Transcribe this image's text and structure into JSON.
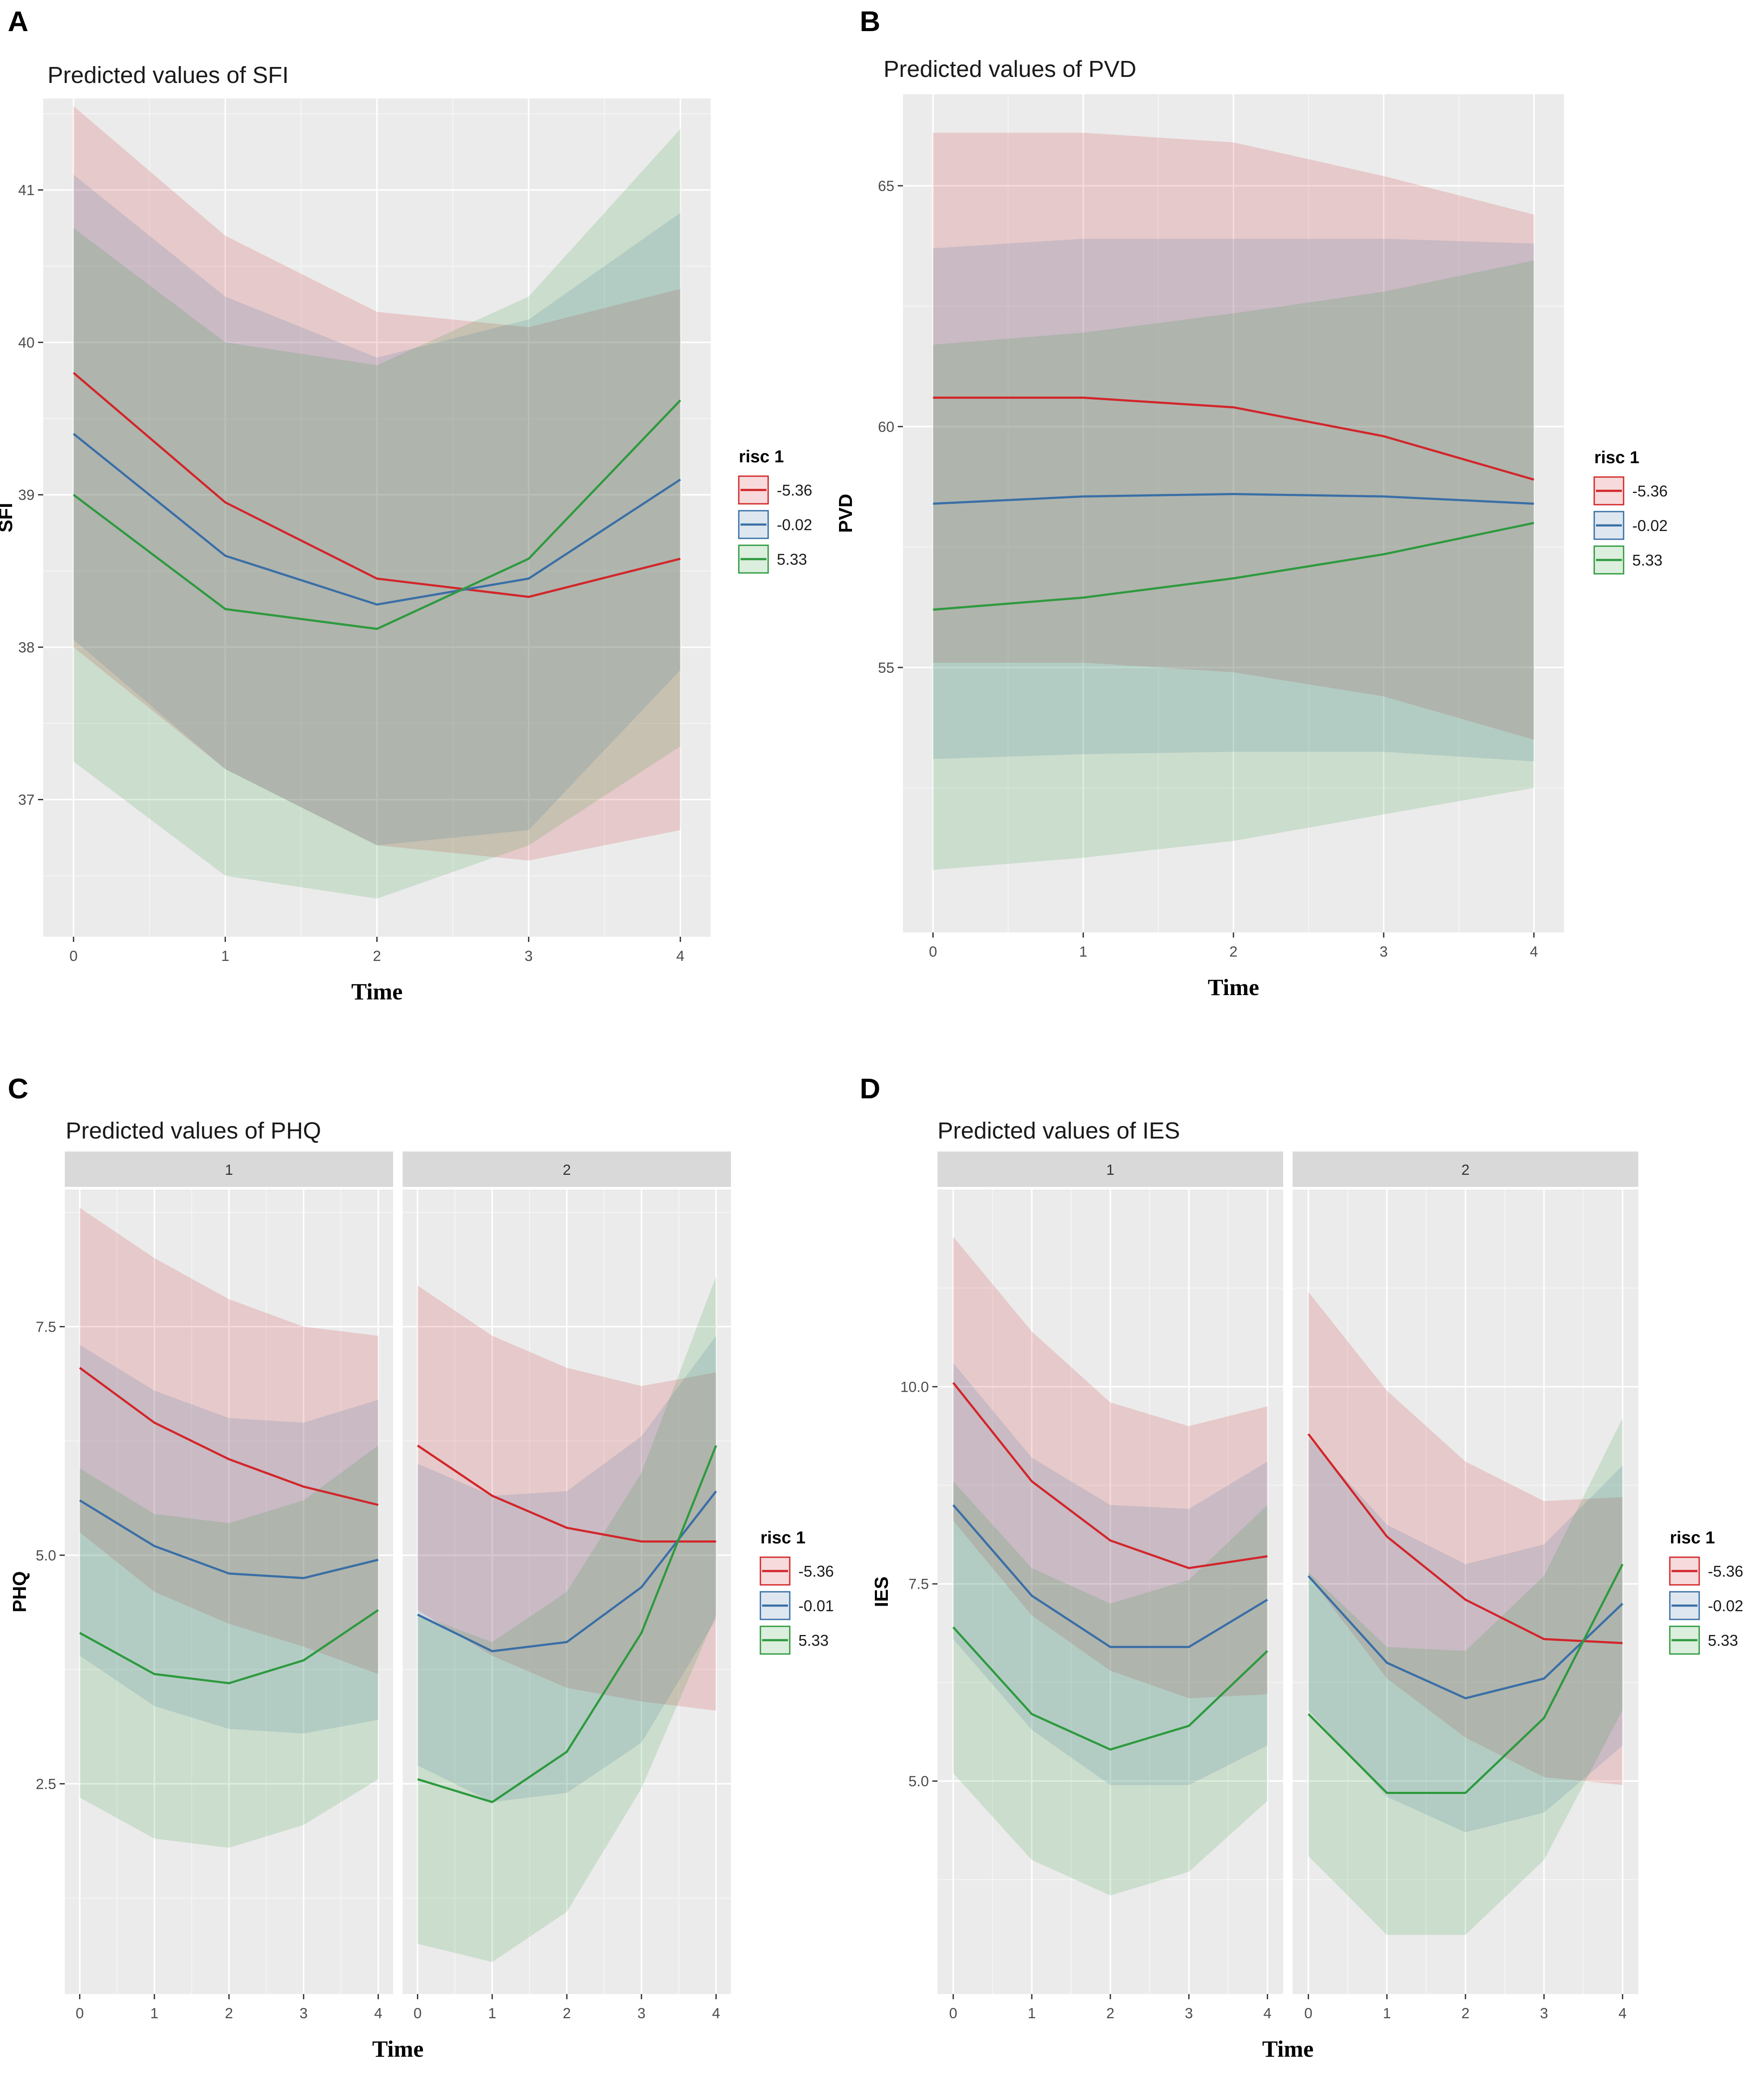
{
  "colors": {
    "red": "#d2262a",
    "blue": "#3a6fa6",
    "green": "#2e9a3e",
    "panel_bg": "#ebebeb",
    "strip_bg": "#d9d9d9"
  },
  "chart_data": [
    {
      "id": "A",
      "panel_letter": "A",
      "type": "line",
      "title": "Predicted values of SFI",
      "xlabel": "Time",
      "ylabel": "SFI",
      "x": [
        0,
        1,
        2,
        3,
        4
      ],
      "xlim": [
        -0.2,
        4.2
      ],
      "ylim": [
        36.1,
        41.6
      ],
      "yticks": [
        37,
        38,
        39,
        40,
        41
      ],
      "ytick_labels": [
        "37",
        "38",
        "39",
        "40",
        "41"
      ],
      "xtick_labels": [
        "0",
        "1",
        "2",
        "3",
        "4"
      ],
      "legend": {
        "title": "risc 1",
        "entries": [
          "-5.36",
          "-0.02",
          "5.33"
        ]
      },
      "facets": [
        {
          "strip": "",
          "series": [
            {
              "name": "-5.36",
              "color": "red",
              "values": [
                39.8,
                38.95,
                38.45,
                38.33,
                38.58
              ],
              "lower": [
                38.0,
                37.2,
                36.7,
                36.6,
                36.8
              ],
              "upper": [
                41.55,
                40.7,
                40.2,
                40.1,
                40.35
              ]
            },
            {
              "name": "-0.02",
              "color": "blue",
              "values": [
                39.4,
                38.6,
                38.28,
                38.45,
                39.1
              ],
              "lower": [
                38.05,
                37.2,
                36.7,
                36.8,
                37.85
              ],
              "upper": [
                41.1,
                40.3,
                39.9,
                40.15,
                40.85
              ]
            },
            {
              "name": "5.33",
              "color": "green",
              "values": [
                39.0,
                38.25,
                38.12,
                38.58,
                39.62
              ],
              "lower": [
                37.25,
                36.5,
                36.35,
                36.7,
                37.35
              ],
              "upper": [
                40.75,
                40.0,
                39.85,
                40.3,
                41.4
              ]
            }
          ]
        }
      ]
    },
    {
      "id": "B",
      "panel_letter": "B",
      "type": "line",
      "title": "Predicted values of PVD",
      "xlabel": "Time",
      "ylabel": "PVD",
      "x": [
        0,
        1,
        2,
        3,
        4
      ],
      "xlim": [
        -0.2,
        4.2
      ],
      "ylim": [
        49.5,
        66.9
      ],
      "yticks": [
        55,
        60,
        65
      ],
      "ytick_labels": [
        "55",
        "60",
        "65"
      ],
      "xtick_labels": [
        "0",
        "1",
        "2",
        "3",
        "4"
      ],
      "legend": {
        "title": "risc 1",
        "entries": [
          "-5.36",
          "-0.02",
          "5.33"
        ]
      },
      "facets": [
        {
          "strip": "",
          "series": [
            {
              "name": "-5.36",
              "color": "red",
              "values": [
                60.6,
                60.6,
                60.4,
                59.8,
                58.9
              ],
              "lower": [
                55.1,
                55.1,
                54.9,
                54.4,
                53.5
              ],
              "upper": [
                66.1,
                66.1,
                65.9,
                65.2,
                64.4
              ]
            },
            {
              "name": "-0.02",
              "color": "blue",
              "values": [
                58.4,
                58.55,
                58.6,
                58.55,
                58.4
              ],
              "lower": [
                53.1,
                53.2,
                53.25,
                53.25,
                53.05
              ],
              "upper": [
                63.7,
                63.9,
                63.9,
                63.9,
                63.8
              ]
            },
            {
              "name": "5.33",
              "color": "green",
              "values": [
                56.2,
                56.45,
                56.85,
                57.35,
                58.0
              ],
              "lower": [
                50.8,
                51.05,
                51.4,
                51.95,
                52.5
              ],
              "upper": [
                61.7,
                61.95,
                62.35,
                62.8,
                63.45
              ]
            }
          ]
        }
      ]
    },
    {
      "id": "C",
      "panel_letter": "C",
      "type": "line",
      "title": "Predicted values of PHQ",
      "xlabel": "Time",
      "ylabel": "PHQ",
      "x": [
        0,
        1,
        2,
        3,
        4
      ],
      "xlim": [
        -0.2,
        4.2
      ],
      "ylim": [
        0.2,
        9.0
      ],
      "yticks": [
        2.5,
        5.0,
        7.5
      ],
      "ytick_labels": [
        "2.5",
        "5.0",
        "7.5"
      ],
      "xtick_labels": [
        "0",
        "1",
        "2",
        "3",
        "4"
      ],
      "legend": {
        "title": "risc 1",
        "entries": [
          "-5.36",
          "-0.01",
          "5.33"
        ]
      },
      "facets": [
        {
          "strip": "1",
          "series": [
            {
              "name": "-5.36",
              "color": "red",
              "values": [
                7.05,
                6.45,
                6.05,
                5.75,
                5.55
              ],
              "lower": [
                5.25,
                4.6,
                4.25,
                4.0,
                3.7
              ],
              "upper": [
                8.8,
                8.25,
                7.8,
                7.5,
                7.4
              ]
            },
            {
              "name": "-0.01",
              "color": "blue",
              "values": [
                5.6,
                5.1,
                4.8,
                4.75,
                4.95
              ],
              "lower": [
                3.9,
                3.35,
                3.1,
                3.05,
                3.2
              ],
              "upper": [
                7.3,
                6.8,
                6.5,
                6.45,
                6.7
              ]
            },
            {
              "name": "5.33",
              "color": "green",
              "values": [
                4.15,
                3.7,
                3.6,
                3.85,
                4.4
              ],
              "lower": [
                2.35,
                1.9,
                1.8,
                2.05,
                2.55
              ],
              "upper": [
                5.95,
                5.45,
                5.35,
                5.6,
                6.2
              ]
            }
          ]
        },
        {
          "strip": "2",
          "series": [
            {
              "name": "-5.36",
              "color": "red",
              "values": [
                6.2,
                5.65,
                5.3,
                5.15,
                5.15
              ],
              "lower": [
                4.4,
                3.9,
                3.55,
                3.4,
                3.3
              ],
              "upper": [
                7.95,
                7.4,
                7.05,
                6.85,
                7.0
              ]
            },
            {
              "name": "-0.01",
              "color": "blue",
              "values": [
                4.35,
                3.95,
                4.05,
                4.65,
                5.7
              ],
              "lower": [
                2.7,
                2.3,
                2.4,
                2.95,
                4.3
              ],
              "upper": [
                6.0,
                5.65,
                5.7,
                6.3,
                7.4
              ]
            },
            {
              "name": "5.33",
              "color": "green",
              "values": [
                2.55,
                2.3,
                2.85,
                4.15,
                6.2
              ],
              "lower": [
                0.75,
                0.55,
                1.1,
                2.45,
                4.35
              ],
              "upper": [
                4.35,
                4.05,
                4.6,
                5.9,
                8.05
              ]
            }
          ]
        }
      ]
    },
    {
      "id": "D",
      "panel_letter": "D",
      "type": "line",
      "title": "Predicted values of IES",
      "xlabel": "Time",
      "ylabel": "IES",
      "x": [
        0,
        1,
        2,
        3,
        4
      ],
      "xlim": [
        -0.2,
        4.2
      ],
      "ylim": [
        2.3,
        12.5
      ],
      "yticks": [
        5.0,
        7.5,
        10.0
      ],
      "ytick_labels": [
        "5.0",
        "7.5",
        "10.0"
      ],
      "xtick_labels": [
        "0",
        "1",
        "2",
        "3",
        "4"
      ],
      "legend": {
        "title": "risc 1",
        "entries": [
          "-5.36",
          "-0.02",
          "5.33"
        ]
      },
      "facets": [
        {
          "strip": "1",
          "series": [
            {
              "name": "-5.36",
              "color": "red",
              "values": [
                10.05,
                8.8,
                8.05,
                7.7,
                7.85
              ],
              "lower": [
                8.3,
                7.1,
                6.4,
                6.05,
                6.1
              ],
              "upper": [
                11.9,
                10.7,
                9.8,
                9.5,
                9.75
              ]
            },
            {
              "name": "-0.02",
              "color": "blue",
              "values": [
                8.5,
                7.35,
                6.7,
                6.7,
                7.3
              ],
              "lower": [
                6.8,
                5.65,
                4.95,
                4.95,
                5.45
              ],
              "upper": [
                10.3,
                9.1,
                8.5,
                8.45,
                9.05
              ]
            },
            {
              "name": "5.33",
              "color": "green",
              "values": [
                6.95,
                5.85,
                5.4,
                5.7,
                6.65
              ],
              "lower": [
                5.1,
                4.0,
                3.55,
                3.85,
                4.75
              ],
              "upper": [
                8.8,
                7.7,
                7.25,
                7.55,
                8.5
              ]
            }
          ]
        },
        {
          "strip": "2",
          "series": [
            {
              "name": "-5.36",
              "color": "red",
              "values": [
                9.4,
                8.1,
                7.3,
                6.8,
                6.75
              ],
              "lower": [
                7.6,
                6.3,
                5.55,
                5.05,
                4.95
              ],
              "upper": [
                11.2,
                9.95,
                9.05,
                8.55,
                8.6
              ]
            },
            {
              "name": "-0.02",
              "color": "blue",
              "values": [
                7.6,
                6.5,
                6.05,
                6.3,
                7.25
              ],
              "lower": [
                5.9,
                4.8,
                4.35,
                4.6,
                5.45
              ],
              "upper": [
                9.35,
                8.25,
                7.75,
                8.0,
                9.0
              ]
            },
            {
              "name": "5.33",
              "color": "green",
              "values": [
                5.85,
                4.85,
                4.85,
                5.8,
                7.75
              ],
              "lower": [
                4.05,
                3.05,
                3.05,
                4.0,
                5.9
              ],
              "upper": [
                7.65,
                6.7,
                6.65,
                7.6,
                9.6
              ]
            }
          ]
        }
      ]
    }
  ]
}
